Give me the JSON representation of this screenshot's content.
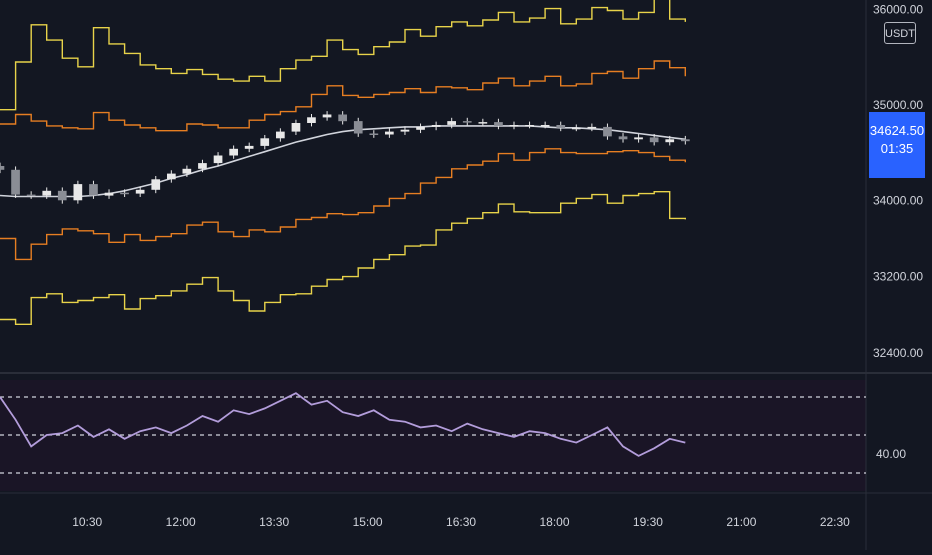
{
  "chart_data": [
    {
      "type": "candlestick",
      "currency": "USDT",
      "last_price": "34624.50",
      "countdown": "01:35",
      "y_ticks": [
        "36000.00",
        "35000.00",
        "34000.00",
        "33200.00",
        "32400.00"
      ],
      "ylim": [
        32200,
        36100
      ],
      "x_ticks": [
        "10:30",
        "12:00",
        "13:30",
        "15:00",
        "16:30",
        "18:00",
        "19:30",
        "21:00",
        "22:30"
      ],
      "x_range_hours": [
        9.1,
        23.0
      ],
      "x": [
        9.1,
        9.35,
        9.6,
        9.85,
        10.1,
        10.35,
        10.6,
        10.85,
        11.1,
        11.35,
        11.6,
        11.85,
        12.1,
        12.35,
        12.6,
        12.85,
        13.1,
        13.35,
        13.6,
        13.85,
        14.1,
        14.35,
        14.6,
        14.85,
        15.1,
        15.35,
        15.6,
        15.85,
        16.1,
        16.35,
        16.6,
        16.85,
        17.1,
        17.35,
        17.6,
        17.85,
        18.1,
        18.35,
        18.6,
        18.85,
        19.1,
        19.35,
        19.6,
        19.85,
        20.1
      ],
      "series": [
        {
          "role": "close",
          "color": "#e8e8e8",
          "values": [
            34320,
            34060,
            34050,
            34100,
            34000,
            34170,
            34050,
            34080,
            34070,
            34110,
            34220,
            34280,
            34330,
            34390,
            34470,
            34540,
            34570,
            34650,
            34720,
            34810,
            34870,
            34900,
            34830,
            34700,
            34690,
            34720,
            34740,
            34770,
            34790,
            34830,
            34820,
            34820,
            34780,
            34790,
            34790,
            34790,
            34760,
            34760,
            34770,
            34670,
            34640,
            34660,
            34610,
            34640,
            34620
          ]
        },
        {
          "role": "mid_band",
          "color": "#d1d4dc",
          "values": [
            34050,
            34040,
            34040,
            34040,
            34040,
            34040,
            34050,
            34070,
            34100,
            34140,
            34180,
            34230,
            34270,
            34320,
            34360,
            34410,
            34460,
            34510,
            34560,
            34610,
            34650,
            34690,
            34720,
            34740,
            34750,
            34760,
            34770,
            34770,
            34780,
            34780,
            34780,
            34780,
            34780,
            34780,
            34780,
            34770,
            34760,
            34760,
            34750,
            34740,
            34720,
            34700,
            34680,
            34660,
            34640
          ]
        },
        {
          "role": "upper_band_1",
          "color": "#e67e22",
          "values": [
            34800,
            34900,
            34830,
            34780,
            34760,
            34750,
            34920,
            34840,
            34790,
            34760,
            34730,
            34730,
            34800,
            34790,
            34760,
            34760,
            34840,
            34900,
            34930,
            34980,
            35110,
            35200,
            35100,
            35080,
            35110,
            35130,
            35170,
            35130,
            35190,
            35180,
            35160,
            35230,
            35280,
            35200,
            35250,
            35300,
            35200,
            35220,
            35330,
            35350,
            35280,
            35380,
            35460,
            35390,
            35300
          ]
        },
        {
          "role": "upper_band_2",
          "color": "#e8d34a",
          "values": [
            34950,
            35450,
            35840,
            35680,
            35490,
            35400,
            35810,
            35640,
            35540,
            35420,
            35380,
            35330,
            35370,
            35320,
            35270,
            35250,
            35300,
            35250,
            35380,
            35470,
            35510,
            35680,
            35580,
            35530,
            35610,
            35660,
            35790,
            35720,
            35820,
            35870,
            35830,
            35890,
            35970,
            35870,
            35910,
            36010,
            35850,
            35900,
            36020,
            35990,
            35900,
            35970,
            36120,
            35900,
            35870
          ]
        },
        {
          "role": "lower_band_1",
          "color": "#e67e22",
          "values": [
            33600,
            33380,
            33540,
            33640,
            33700,
            33680,
            33650,
            33560,
            33640,
            33580,
            33620,
            33650,
            33740,
            33770,
            33670,
            33620,
            33690,
            33670,
            33720,
            33800,
            33820,
            33860,
            33850,
            33870,
            33940,
            34020,
            34070,
            34180,
            34240,
            34330,
            34370,
            34410,
            34490,
            34420,
            34500,
            34540,
            34500,
            34490,
            34490,
            34510,
            34520,
            34500,
            34460,
            34420,
            34400
          ]
        },
        {
          "role": "lower_band_2",
          "color": "#e8d34a",
          "values": [
            32750,
            32700,
            32980,
            33020,
            32930,
            32950,
            32980,
            33010,
            32860,
            32970,
            33000,
            33050,
            33120,
            33190,
            33050,
            32950,
            32840,
            32930,
            33010,
            33020,
            33100,
            33170,
            33200,
            33290,
            33380,
            33430,
            33520,
            33530,
            33690,
            33760,
            33810,
            33870,
            33960,
            33880,
            33870,
            33870,
            33970,
            34020,
            34060,
            33970,
            34050,
            34070,
            34090,
            33810,
            33800
          ]
        }
      ]
    },
    {
      "type": "line",
      "indicator": "oscillator",
      "y_ticks": [
        "40.00"
      ],
      "ylim": [
        20,
        80
      ],
      "guide_levels": [
        70,
        50,
        30
      ],
      "guide_color": "#d1d4dc",
      "x_range_hours": [
        9.1,
        23.0
      ],
      "x": [
        9.1,
        9.35,
        9.6,
        9.85,
        10.1,
        10.35,
        10.6,
        10.85,
        11.1,
        11.35,
        11.6,
        11.85,
        12.1,
        12.35,
        12.6,
        12.85,
        13.1,
        13.35,
        13.6,
        13.85,
        14.1,
        14.35,
        14.6,
        14.85,
        15.1,
        15.35,
        15.6,
        15.85,
        16.1,
        16.35,
        16.6,
        16.85,
        17.1,
        17.35,
        17.6,
        17.85,
        18.1,
        18.35,
        18.6,
        18.85,
        19.1,
        19.35,
        19.6,
        19.85,
        20.1
      ],
      "series": [
        {
          "color": "#b39ddb",
          "values": [
            70,
            58,
            44,
            50,
            51,
            55,
            49,
            53,
            48,
            52,
            54,
            51,
            55,
            60,
            57,
            63,
            61,
            64,
            68,
            72,
            66,
            68,
            62,
            60,
            63,
            58,
            57,
            54,
            55,
            52,
            56,
            53,
            51,
            49,
            52,
            51,
            48,
            46,
            50,
            54,
            44,
            39,
            43,
            48,
            46
          ]
        }
      ]
    }
  ],
  "colors": {
    "background": "#131722",
    "panel_background": "#1a1526",
    "axis_text": "#d1d4dc",
    "separator": "#2a2e39",
    "price_tag": "#2962ff"
  }
}
